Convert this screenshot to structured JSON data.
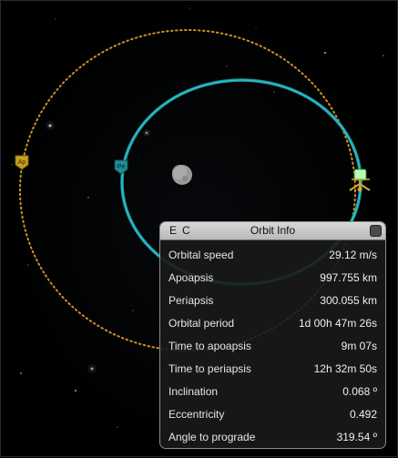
{
  "panel": {
    "buttons": {
      "e": "E",
      "c": "C"
    },
    "title": "Orbit Info",
    "rows": [
      {
        "label": "Orbital speed",
        "value": "29.12 m/s"
      },
      {
        "label": "Apoapsis",
        "value": "997.755 km"
      },
      {
        "label": "Periapsis",
        "value": "300.055 km"
      },
      {
        "label": "Orbital period",
        "value": "1d 00h 47m 26s"
      },
      {
        "label": "Time to apoapsis",
        "value": "9m 07s"
      },
      {
        "label": "Time to periapsis",
        "value": "12h 32m 50s"
      },
      {
        "label": "Inclination",
        "value": "0.068 º"
      },
      {
        "label": "Eccentricity",
        "value": "0.492"
      },
      {
        "label": "Angle to prograde",
        "value": "319.54 º"
      }
    ]
  },
  "scene": {
    "orbit_color": "#1aa6b2",
    "target_orbit_color": "#d89a28",
    "markers": [
      {
        "name": "apoapsis-marker-icon",
        "color": "#c8a020"
      },
      {
        "name": "periapsis-marker-icon",
        "color": "#1f8f96"
      },
      {
        "name": "vessel-icon",
        "color": "#d2a640"
      }
    ]
  }
}
